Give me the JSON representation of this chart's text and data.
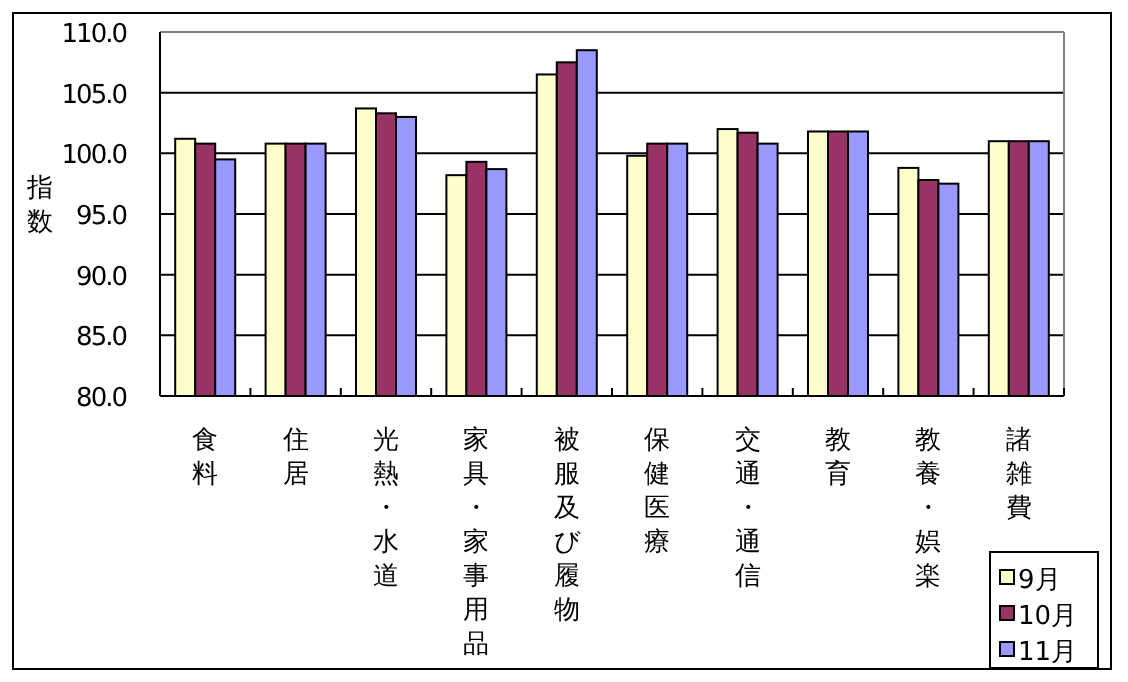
{
  "chart_data": {
    "type": "bar",
    "ylabel": "指数",
    "categories": [
      "食料",
      "住居",
      "光熱・水道",
      "家具・家事用品",
      "被服及び履物",
      "保健医療",
      "交通・通信",
      "教育",
      "教養・娯楽",
      "諸雑費"
    ],
    "series": [
      {
        "name": "9月",
        "color": "#ffffcc",
        "values": [
          101.2,
          100.8,
          103.7,
          98.2,
          106.5,
          99.8,
          102.0,
          101.8,
          98.8,
          101.0
        ]
      },
      {
        "name": "10月",
        "color": "#993366",
        "values": [
          100.8,
          100.8,
          103.3,
          99.3,
          107.5,
          100.8,
          101.7,
          101.8,
          97.8,
          101.0
        ]
      },
      {
        "name": "11月",
        "color": "#9999ff",
        "values": [
          99.5,
          100.8,
          103.0,
          98.7,
          108.5,
          100.8,
          100.8,
          101.8,
          97.5,
          101.0
        ]
      }
    ],
    "ylim": [
      80,
      110
    ],
    "yticks": [
      {
        "value": 80,
        "label": "80.0"
      },
      {
        "value": 85,
        "label": "85.0"
      },
      {
        "value": 90,
        "label": "90.0"
      },
      {
        "value": 95,
        "label": "95.0"
      },
      {
        "value": 100,
        "label": "100.0"
      },
      {
        "value": 105,
        "label": "105.0"
      },
      {
        "value": 110,
        "label": "110.0"
      }
    ],
    "grid": "y",
    "legend": "bottom right"
  }
}
